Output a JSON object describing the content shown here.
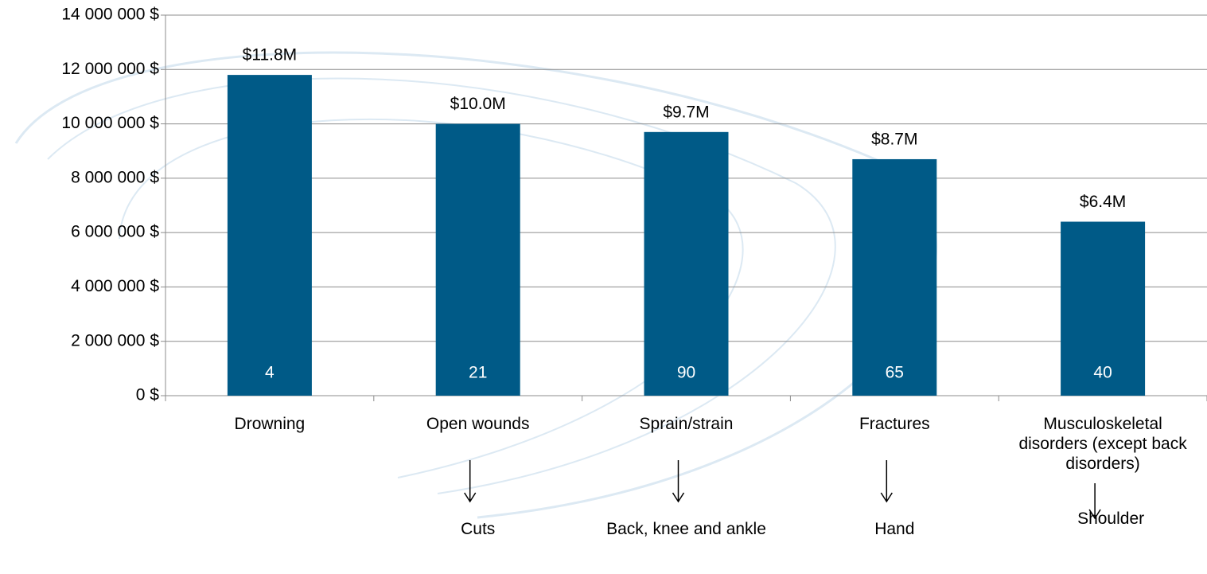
{
  "chart_data": {
    "type": "bar",
    "categories": [
      "Drowning",
      "Open wounds",
      "Sprain/strain",
      "Fractures",
      "Musculoskeletal disorders (except back disorders)"
    ],
    "values": [
      11800000,
      10000000,
      9700000,
      8700000,
      6400000
    ],
    "value_labels": [
      "$11.8M",
      "$10.0M",
      "$9.7M",
      "$8.7M",
      "$6.4M"
    ],
    "bar_counts": [
      4,
      21,
      90,
      65,
      40
    ],
    "sub_labels": [
      null,
      "Cuts",
      "Back, knee and ankle",
      "Hand",
      "Shoulder"
    ],
    "color": "#005a87",
    "ylim": [
      0,
      14000000
    ],
    "yticks": [
      {
        "value": 0,
        "label": "0 $"
      },
      {
        "value": 2000000,
        "label": "2 000 000 $"
      },
      {
        "value": 4000000,
        "label": "4 000 000 $"
      },
      {
        "value": 6000000,
        "label": "6 000 000 $"
      },
      {
        "value": 8000000,
        "label": "8 000 000 $"
      },
      {
        "value": 10000000,
        "label": "10 000 000 $"
      },
      {
        "value": 12000000,
        "label": "12 000 000 $"
      },
      {
        "value": 14000000,
        "label": "14 000 000 $"
      }
    ],
    "grid": true
  }
}
